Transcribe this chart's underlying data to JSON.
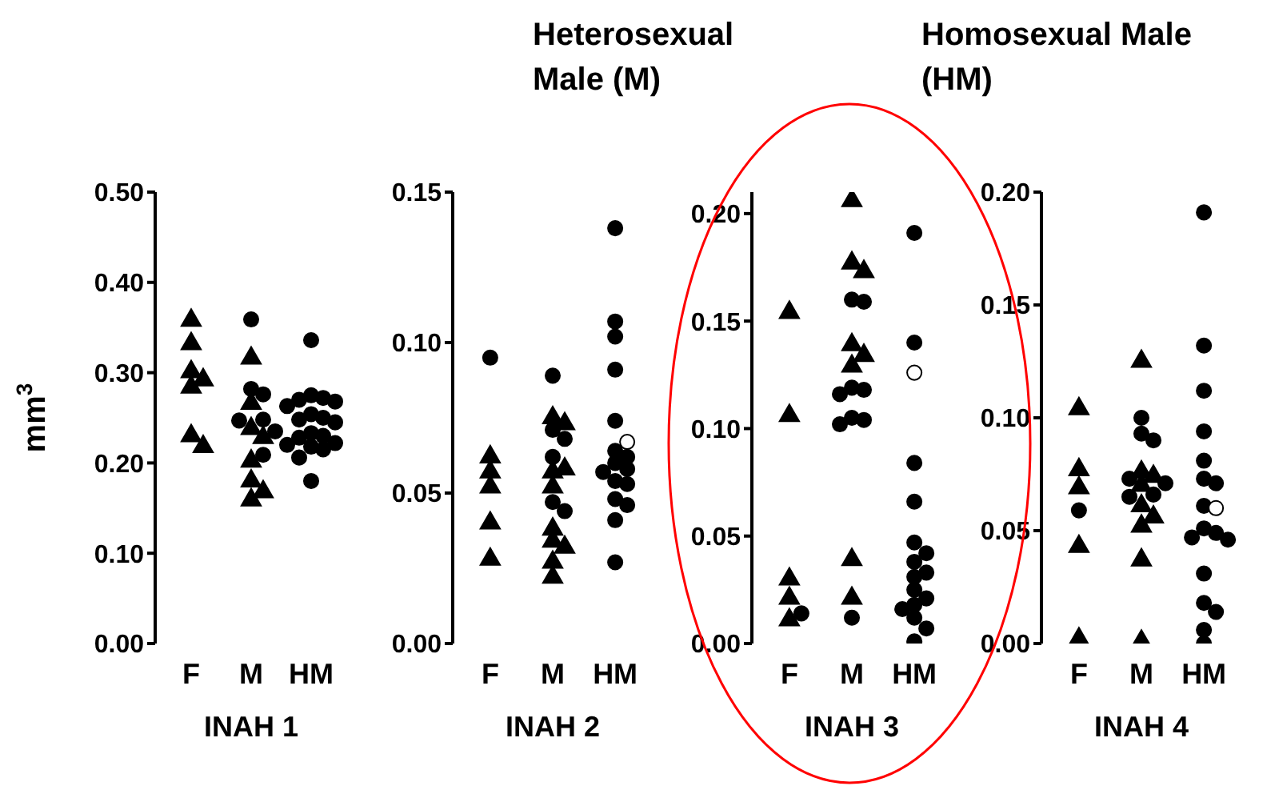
{
  "chart_data": [
    {
      "type": "scatter",
      "xlabel": "INAH 1",
      "ylabel": "mm$^{3}$",
      "categories": [
        "F",
        "M",
        "HM"
      ],
      "ylim": [
        0,
        0.5
      ],
      "yticks": [
        {
          "value": 0,
          "label": "0.00"
        },
        {
          "value": 0.1,
          "label": "0.10"
        },
        {
          "value": 0.2,
          "label": "0.20"
        },
        {
          "value": 0.3,
          "label": "0.30"
        },
        {
          "value": 0.4,
          "label": "0.40"
        },
        {
          "value": 0.5,
          "label": "0.50"
        }
      ],
      "series": [
        {
          "marker": "triangle",
          "color": "#000000",
          "x": [
            "F",
            "F",
            "F",
            "F",
            "F",
            "F",
            "F",
            "M",
            "M",
            "M",
            "M",
            "M",
            "M",
            "M",
            "M"
          ],
          "values": [
            0.358,
            0.332,
            0.301,
            0.292,
            0.284,
            0.23,
            0.218,
            0.316,
            0.266,
            0.238,
            0.228,
            0.202,
            0.18,
            0.168,
            0.159
          ]
        },
        {
          "marker": "circle",
          "color": "#000000",
          "x": [
            "M",
            "M",
            "M",
            "M",
            "M",
            "M",
            "M",
            "HM",
            "HM",
            "HM",
            "HM",
            "HM",
            "HM",
            "HM",
            "HM",
            "HM",
            "HM",
            "HM",
            "HM",
            "HM",
            "HM",
            "HM",
            "HM",
            "HM",
            "HM"
          ],
          "values": [
            0.359,
            0.282,
            0.276,
            0.248,
            0.247,
            0.235,
            0.209,
            0.336,
            0.275,
            0.272,
            0.27,
            0.268,
            0.263,
            0.254,
            0.25,
            0.248,
            0.245,
            0.233,
            0.23,
            0.228,
            0.222,
            0.22,
            0.218,
            0.215,
            0.206
          ]
        },
        {
          "marker": "circle",
          "color": "#000000",
          "x": [
            "HM"
          ],
          "values": [
            0.18
          ]
        }
      ]
    },
    {
      "type": "scatter",
      "xlabel": "INAH 2",
      "categories": [
        "F",
        "M",
        "HM"
      ],
      "ylim": [
        0,
        0.15
      ],
      "yticks": [
        {
          "value": 0,
          "label": "0.00"
        },
        {
          "value": 0.05,
          "label": "0.05"
        },
        {
          "value": 0.1,
          "label": "0.10"
        },
        {
          "value": 0.15,
          "label": "0.15"
        }
      ],
      "annotations": [
        "Heterosexual Male (M)"
      ],
      "series": [
        {
          "marker": "triangle",
          "color": "#000000",
          "x": [
            "F",
            "F",
            "F",
            "F",
            "F",
            "M",
            "M",
            "M",
            "M",
            "M",
            "M",
            "M",
            "M",
            "M",
            "M"
          ],
          "values": [
            0.062,
            0.057,
            0.052,
            0.04,
            0.028,
            0.075,
            0.073,
            0.057,
            0.058,
            0.052,
            0.038,
            0.034,
            0.032,
            0.027,
            0.022
          ]
        },
        {
          "marker": "circle",
          "color": "#000000",
          "x": [
            "F",
            "M",
            "M",
            "M",
            "M",
            "M",
            "M",
            "HM",
            "HM",
            "HM",
            "HM",
            "HM",
            "HM",
            "HM",
            "HM",
            "HM",
            "HM",
            "HM",
            "HM",
            "HM",
            "HM",
            "HM",
            "HM"
          ],
          "values": [
            0.095,
            0.089,
            0.071,
            0.068,
            0.062,
            0.047,
            0.044,
            0.138,
            0.107,
            0.102,
            0.091,
            0.074,
            0.064,
            0.062,
            0.06,
            0.058,
            0.057,
            0.054,
            0.053,
            0.048,
            0.046,
            0.041,
            0.027
          ]
        },
        {
          "marker": "circle",
          "color": "#ffffff",
          "x": [
            "HM"
          ],
          "values": [
            0.067
          ]
        }
      ]
    },
    {
      "type": "scatter",
      "xlabel": "INAH 3",
      "categories": [
        "F",
        "M",
        "HM"
      ],
      "ylim": [
        0,
        0.21
      ],
      "yticks": [
        {
          "value": 0,
          "label": "0.00"
        },
        {
          "value": 0.05,
          "label": "0.05"
        },
        {
          "value": 0.1,
          "label": "0.10"
        },
        {
          "value": 0.15,
          "label": "0.15"
        },
        {
          "value": 0.2,
          "label": "0.20"
        }
      ],
      "series": [
        {
          "marker": "triangle",
          "color": "#000000",
          "x": [
            "F",
            "F",
            "F",
            "F",
            "F",
            "M",
            "M",
            "M",
            "M",
            "M",
            "M",
            "M",
            "M"
          ],
          "values": [
            0.154,
            0.106,
            0.03,
            0.021,
            0.011,
            0.206,
            0.177,
            0.173,
            0.139,
            0.134,
            0.129,
            0.039,
            0.021
          ]
        },
        {
          "marker": "circle",
          "color": "#000000",
          "x": [
            "F",
            "M",
            "M",
            "M",
            "M",
            "M",
            "M",
            "M",
            "M",
            "M",
            "HM",
            "HM",
            "HM",
            "HM",
            "HM",
            "HM",
            "HM",
            "HM",
            "HM",
            "HM",
            "HM",
            "HM",
            "HM",
            "HM",
            "HM",
            "HM"
          ],
          "values": [
            0.014,
            0.16,
            0.159,
            0.119,
            0.118,
            0.116,
            0.105,
            0.104,
            0.102,
            0.012,
            0.191,
            0.14,
            0.084,
            0.066,
            0.047,
            0.042,
            0.038,
            0.033,
            0.031,
            0.025,
            0.021,
            0.018,
            0.016,
            0.012,
            0.007,
            0.001
          ]
        },
        {
          "marker": "circle",
          "color": "#ffffff",
          "x": [
            "HM"
          ],
          "values": [
            0.126
          ]
        }
      ]
    },
    {
      "type": "scatter",
      "xlabel": "INAH 4",
      "categories": [
        "F",
        "M",
        "HM"
      ],
      "ylim": [
        0,
        0.2
      ],
      "yticks": [
        {
          "value": 0,
          "label": "0.00"
        },
        {
          "value": 0.05,
          "label": "0.05"
        },
        {
          "value": 0.1,
          "label": "0.10"
        },
        {
          "value": 0.15,
          "label": "0.15"
        },
        {
          "value": 0.2,
          "label": "0.20"
        }
      ],
      "annotations": [
        "Homosexual Male (HM)"
      ],
      "series": [
        {
          "marker": "triangle",
          "color": "#000000",
          "x": [
            "F",
            "F",
            "F",
            "F",
            "F",
            "M",
            "M",
            "M",
            "M",
            "M",
            "M",
            "M",
            "M",
            "M"
          ],
          "values": [
            0.104,
            0.077,
            0.069,
            0.043,
            0.002,
            0.125,
            0.076,
            0.074,
            0.07,
            0.061,
            0.056,
            0.052,
            0.037,
            0.001
          ]
        },
        {
          "marker": "circle",
          "color": "#000000",
          "x": [
            "F",
            "M",
            "M",
            "M",
            "M",
            "M",
            "M",
            "M",
            "HM",
            "HM",
            "HM",
            "HM",
            "HM",
            "HM",
            "HM",
            "HM",
            "HM",
            "HM",
            "HM",
            "HM",
            "HM",
            "HM",
            "HM",
            "HM",
            "HM"
          ],
          "values": [
            0.059,
            0.1,
            0.093,
            0.09,
            0.073,
            0.071,
            0.066,
            0.065,
            0.191,
            0.132,
            0.112,
            0.094,
            0.081,
            0.073,
            0.071,
            0.061,
            0.051,
            0.049,
            0.047,
            0.046,
            0.031,
            0.018,
            0.014,
            0.006,
            0
          ]
        },
        {
          "marker": "circle",
          "color": "#ffffff",
          "x": [
            "HM"
          ],
          "values": [
            0.06
          ]
        }
      ]
    }
  ]
}
